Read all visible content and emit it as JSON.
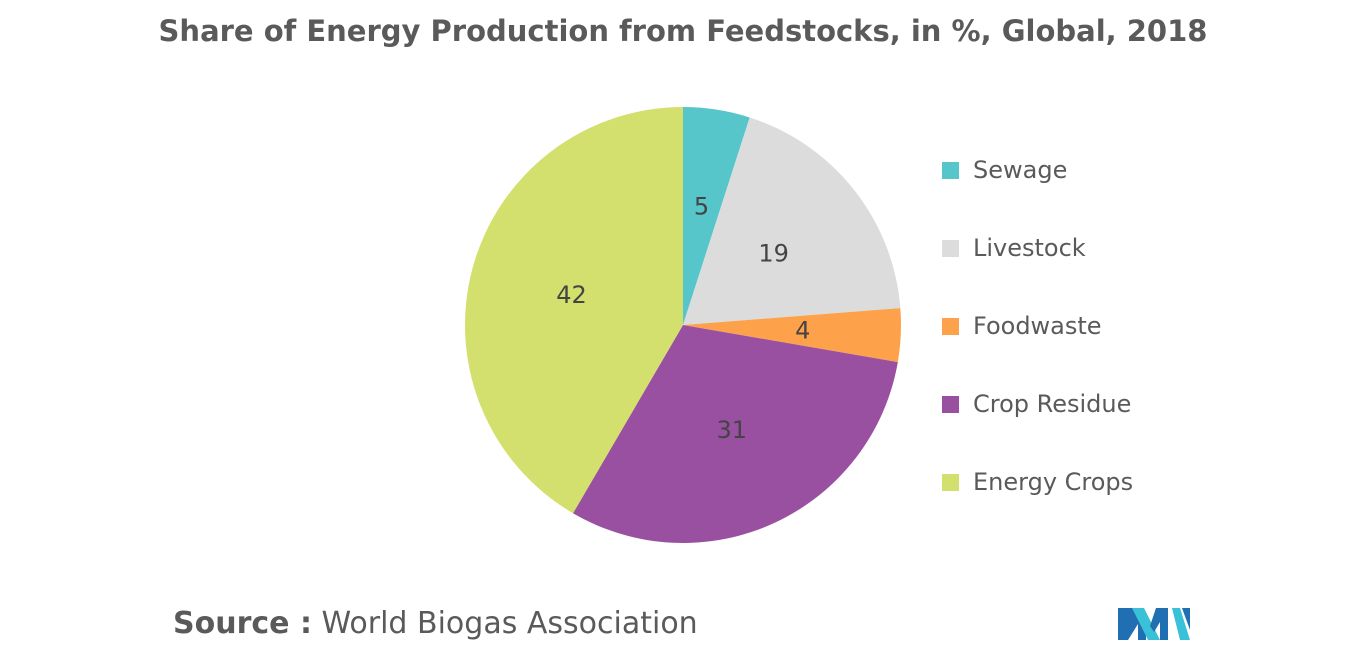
{
  "colors": {
    "title_text": "#5a5a5a",
    "label_text": "#444444",
    "sewage": "#56c6cb",
    "livestock": "#dcdcdc",
    "foodwaste": "#fda24b",
    "crop_residue": "#9a50a0",
    "energy_crops": "#d3e06e",
    "logo_primary": "#1f6fb2",
    "logo_secondary": "#39c2d7"
  },
  "source": {
    "label": "Source :",
    "text": "World Biogas Association"
  },
  "chart_data": {
    "type": "pie",
    "title": "Share of Energy Production from Feedstocks, in %, Global, 2018",
    "legend_position": "right",
    "slices": [
      {
        "name": "Sewage",
        "value": 5,
        "label": "5",
        "color": "#56c6cb"
      },
      {
        "name": "Livestock",
        "value": 19,
        "label": "19",
        "color": "#dcdcdc"
      },
      {
        "name": "Foodwaste",
        "value": 4,
        "label": "4",
        "color": "#fda24b"
      },
      {
        "name": "Crop Residue",
        "value": 31,
        "label": "31",
        "color": "#9a50a0"
      },
      {
        "name": "Energy Crops",
        "value": 42,
        "label": "42",
        "color": "#d3e06e"
      }
    ]
  }
}
